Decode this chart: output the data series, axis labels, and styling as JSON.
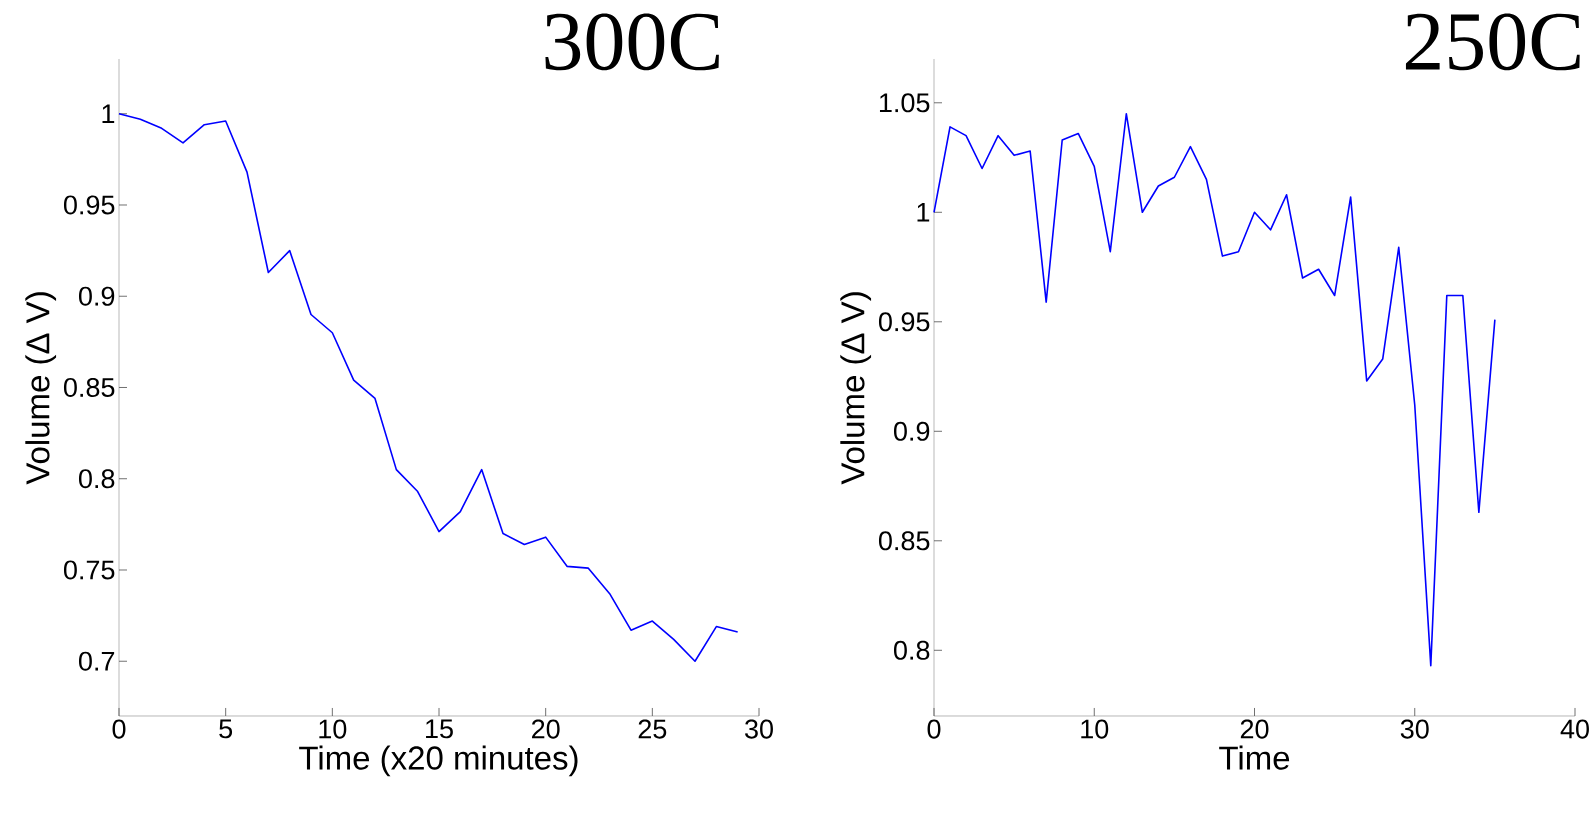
{
  "chart_data": [
    {
      "type": "line",
      "title": "300C",
      "xlabel": "Time (x20 minutes)",
      "ylabel": "Volume (Δ V)",
      "color": "#0000ff",
      "x": [
        0,
        1,
        2,
        3,
        4,
        5,
        6,
        7,
        8,
        9,
        10,
        11,
        12,
        13,
        14,
        15,
        16,
        17,
        18,
        19,
        20,
        21,
        22,
        23,
        24,
        25,
        26,
        27,
        28,
        29
      ],
      "values": [
        1.0,
        0.997,
        0.992,
        0.984,
        0.994,
        0.996,
        0.968,
        0.913,
        0.925,
        0.89,
        0.88,
        0.854,
        0.844,
        0.805,
        0.793,
        0.771,
        0.782,
        0.805,
        0.77,
        0.764,
        0.768,
        0.752,
        0.751,
        0.737,
        0.717,
        0.722,
        0.712,
        0.7,
        0.719,
        0.716
      ],
      "xlim": [
        0,
        30
      ],
      "ylim": [
        0.67,
        1.03
      ],
      "xticks": [
        0,
        5,
        10,
        15,
        20,
        25,
        30
      ],
      "yticks": [
        0.7,
        0.75,
        0.8,
        0.85,
        0.9,
        0.95,
        1
      ]
    },
    {
      "type": "line",
      "title": "250C",
      "xlabel": "Time",
      "ylabel": "Volume (Δ V)",
      "color": "#0000ff",
      "x": [
        0,
        1,
        2,
        3,
        4,
        5,
        6,
        7,
        8,
        9,
        10,
        11,
        12,
        13,
        14,
        15,
        16,
        17,
        18,
        19,
        20,
        21,
        22,
        23,
        24,
        25,
        26,
        27,
        28,
        29,
        30,
        31,
        32,
        33,
        34,
        35
      ],
      "values": [
        1.0,
        1.039,
        1.035,
        1.02,
        1.035,
        1.026,
        1.028,
        0.959,
        1.033,
        1.036,
        1.021,
        0.982,
        1.045,
        1.0,
        1.012,
        1.016,
        1.03,
        1.015,
        0.98,
        0.982,
        1.0,
        0.992,
        1.008,
        0.97,
        0.974,
        0.962,
        1.007,
        0.923,
        0.933,
        0.984,
        0.912,
        0.793,
        0.962,
        0.962,
        0.863,
        0.951
      ],
      "xlim": [
        0,
        40
      ],
      "ylim": [
        0.77,
        1.07
      ],
      "xticks": [
        0,
        10,
        20,
        30,
        40
      ],
      "yticks": [
        0.8,
        0.85,
        0.9,
        0.95,
        1,
        1.05
      ]
    }
  ]
}
